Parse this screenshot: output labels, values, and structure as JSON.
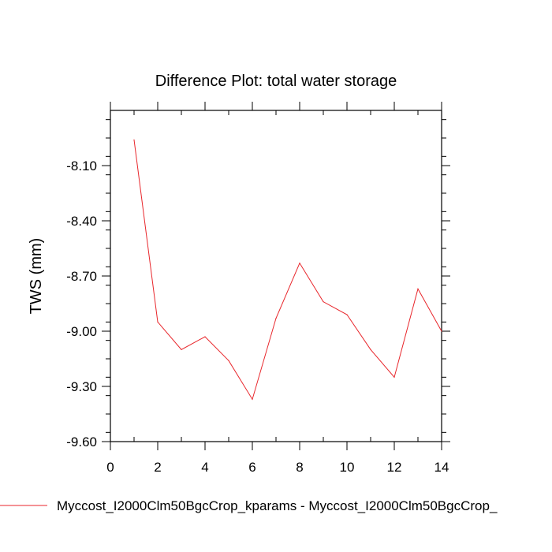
{
  "chart_data": {
    "type": "line",
    "title": "Difference Plot: total water storage",
    "xlabel": "",
    "ylabel": "TWS  (mm)",
    "xlim": [
      0,
      14
    ],
    "ylim": [
      -9.6,
      -7.8
    ],
    "x_ticks": [
      0,
      2,
      4,
      6,
      8,
      10,
      12,
      14
    ],
    "y_ticks": [
      -8.1,
      -8.4,
      -8.7,
      -9.0,
      -9.3,
      -9.6
    ],
    "x_tick_labels": [
      "0",
      "2",
      "4",
      "6",
      "8",
      "10",
      "12",
      "14"
    ],
    "y_tick_labels": [
      "-8.10",
      "-8.40",
      "-8.70",
      "-9.00",
      "-9.30",
      "-9.60"
    ],
    "grid": false,
    "legend_position": "bottom",
    "series": [
      {
        "name": "Myccost_I2000Clm50BgcCrop_kparams - Myccost_I2000Clm50BgcCrop_",
        "color": "#e8262b",
        "x": [
          1,
          2,
          3,
          4,
          5,
          6,
          7,
          8,
          9,
          10,
          11,
          12,
          13,
          14
        ],
        "y": [
          -7.96,
          -8.95,
          -9.1,
          -9.03,
          -9.16,
          -9.37,
          -8.93,
          -8.63,
          -8.84,
          -8.91,
          -9.1,
          -9.25,
          -8.77,
          -9.0
        ]
      }
    ]
  }
}
